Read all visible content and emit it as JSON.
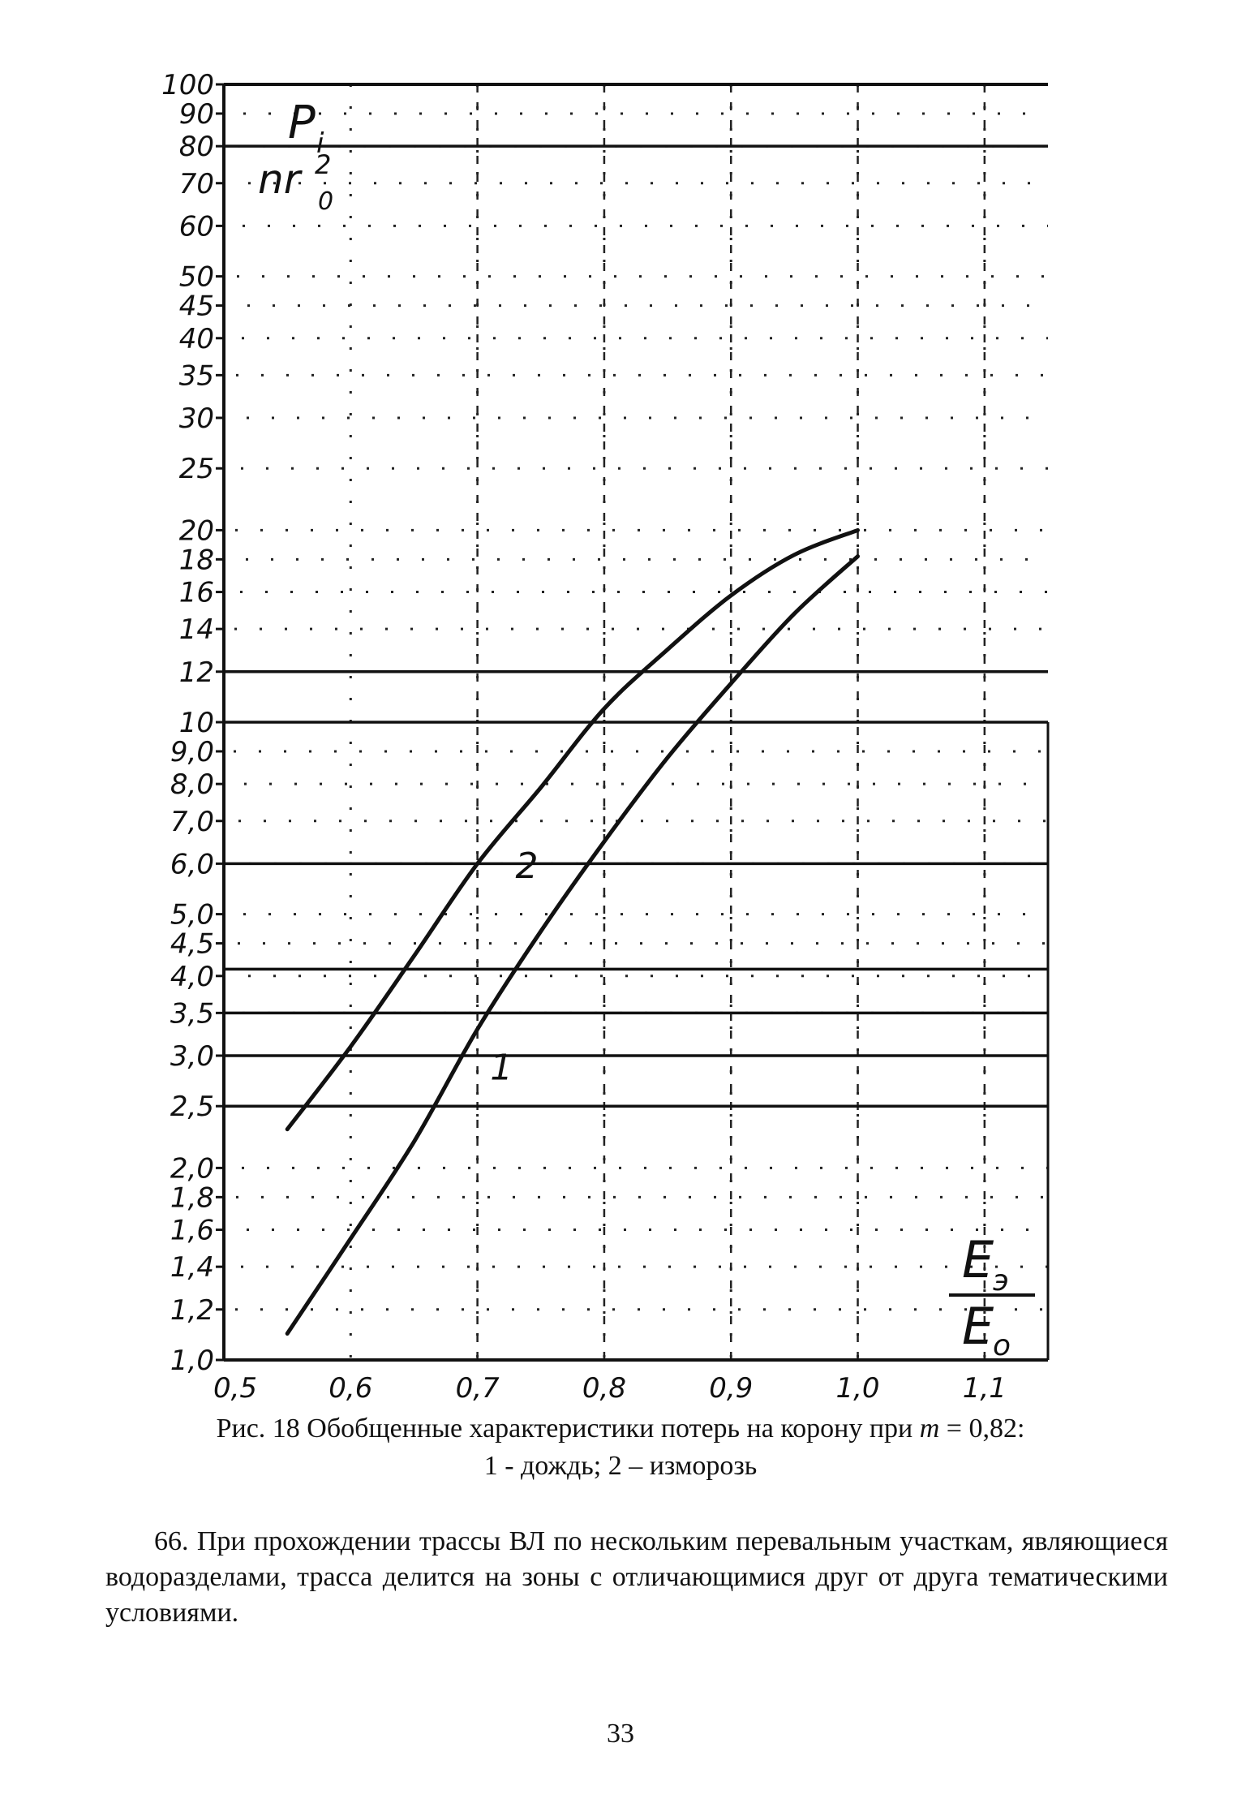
{
  "chart_data": {
    "type": "line",
    "xlim": [
      0.5,
      1.15
    ],
    "ylim": [
      1.0,
      100
    ],
    "yscale": "log",
    "grid": true,
    "x_ticks": [
      0.5,
      0.6,
      0.7,
      0.8,
      0.9,
      1.0,
      1.1
    ],
    "x_tick_labels": [
      "0,5",
      "0,6",
      "0,7",
      "0,8",
      "0,9",
      "1,0",
      "1,1"
    ],
    "y_ticks": [
      100,
      90,
      80,
      70,
      60,
      50,
      45,
      40,
      35,
      30,
      25,
      20,
      18,
      16,
      14,
      12,
      10,
      9.0,
      8.0,
      7.0,
      6.0,
      5.0,
      4.5,
      4.0,
      3.5,
      3.0,
      2.5,
      2.0,
      1.8,
      1.6,
      1.4,
      1.2,
      1.0
    ],
    "y_tick_labels": [
      "100",
      "90",
      "80",
      "70",
      "60",
      "50",
      "45",
      "40",
      "35",
      "30",
      "25",
      "20",
      "18",
      "16",
      "14",
      "12",
      "10",
      "9,0",
      "8,0",
      "7,0",
      "6,0",
      "5,0",
      "4,5",
      "4,0",
      "3,5",
      "3,0",
      "2,5",
      "2,0",
      "1,8",
      "1,6",
      "1,4",
      "1,2",
      "1,0"
    ],
    "ylabel_top": "P",
    "ylabel_top_sub": "i",
    "ylabel_bottom": "nr",
    "ylabel_bottom_sup": "2",
    "ylabel_bottom_sub": "0",
    "xlabel_numerator": "E",
    "xlabel_numerator_sub": "э",
    "xlabel_denominator": "E",
    "xlabel_denominator_sub": "о",
    "series": [
      {
        "name": "1",
        "x": [
          0.55,
          0.6,
          0.65,
          0.7,
          0.75,
          0.8,
          0.85,
          0.9,
          0.95,
          1.0
        ],
        "y": [
          1.1,
          1.55,
          2.2,
          3.3,
          4.7,
          6.5,
          8.8,
          11.5,
          14.8,
          18.2
        ]
      },
      {
        "name": "2",
        "x": [
          0.55,
          0.6,
          0.65,
          0.7,
          0.75,
          0.8,
          0.85,
          0.9,
          0.95,
          1.0
        ],
        "y": [
          2.3,
          3.1,
          4.3,
          6.0,
          7.9,
          10.5,
          13.0,
          15.8,
          18.3,
          20.0
        ]
      }
    ],
    "series_label_positions": [
      {
        "name": "1",
        "x": 0.71,
        "y": 2.75
      },
      {
        "name": "2",
        "x": 0.73,
        "y": 5.7
      }
    ],
    "solid_h_lines": [
      80,
      12,
      10,
      6.0,
      4.1,
      3.5,
      3.0,
      2.5
    ],
    "dashed_v_lines": [
      0.7,
      0.8,
      0.9,
      1.0,
      1.1
    ]
  },
  "caption": {
    "line1_prefix": "Рис. 18 Обобщенные характеристики потерь на корону при ",
    "line1_var": "m",
    "line1_suffix": " = 0,82:",
    "line2": "1 - дождь; 2 – изморозь"
  },
  "paragraph": "66. При прохождении трассы ВЛ по нескольким перевальным участкам, являющиеся водоразделами, трасса делится на зоны с отличающимися друг от друга тематическими условиями.",
  "page_number": "33"
}
